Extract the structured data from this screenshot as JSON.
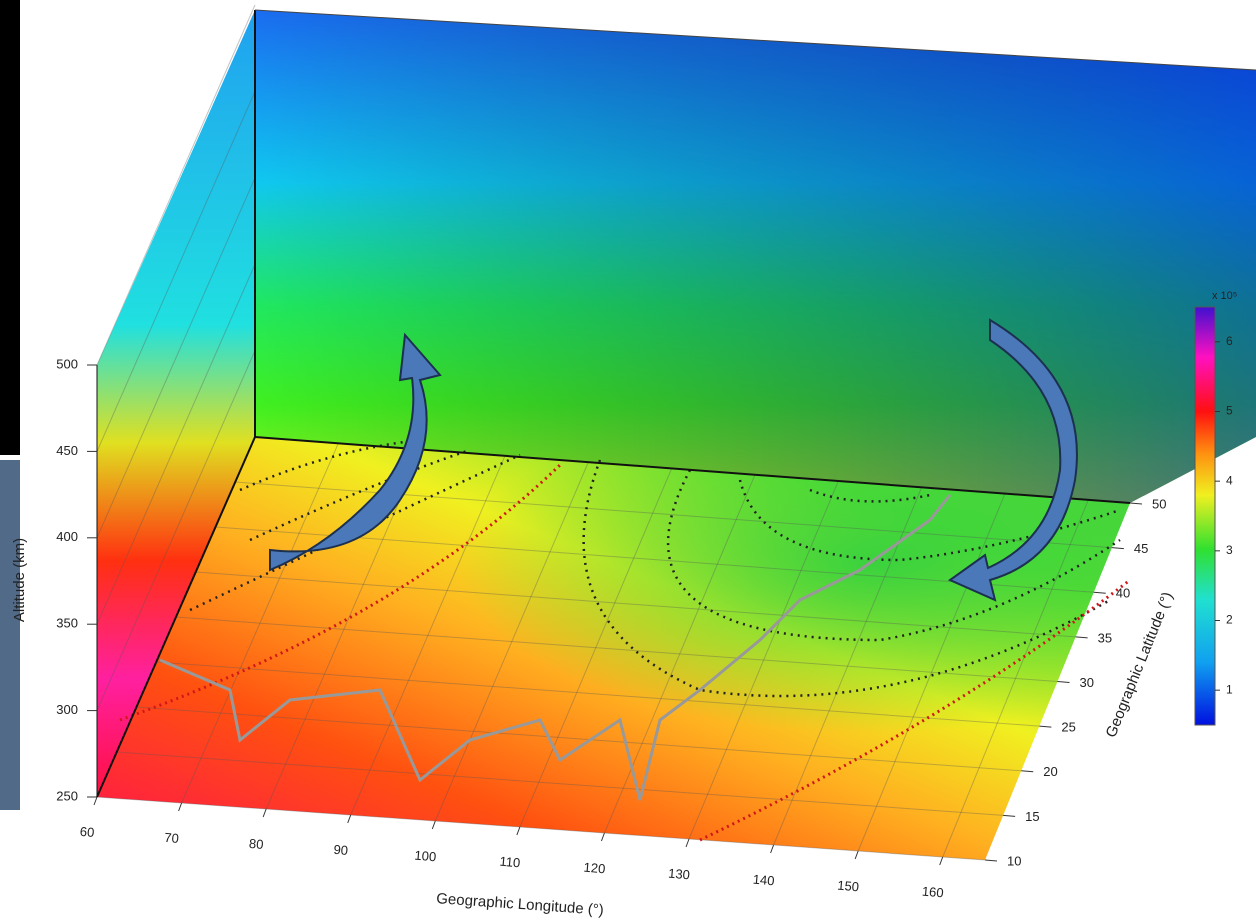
{
  "chart_data": {
    "type": "surface3d",
    "x_label": "Geographic Longitude (°)",
    "y_label": "Geographic Latitude (°)",
    "z_label": "Altitude (km)",
    "xlim": [
      60,
      165
    ],
    "xticks": [
      60,
      70,
      80,
      90,
      100,
      110,
      120,
      130,
      140,
      150,
      160
    ],
    "ylim": [
      10,
      50
    ],
    "yticks": [
      10,
      15,
      20,
      25,
      30,
      35,
      40,
      45,
      50
    ],
    "zlim": [
      250,
      500
    ],
    "zticks": [
      250,
      300,
      350,
      400,
      450,
      500
    ],
    "colorbar": {
      "label": "x 10⁵",
      "lim": [
        0.5,
        6.5
      ],
      "ticks": [
        1,
        2,
        3,
        4,
        5,
        6
      ]
    },
    "grid": true
  }
}
